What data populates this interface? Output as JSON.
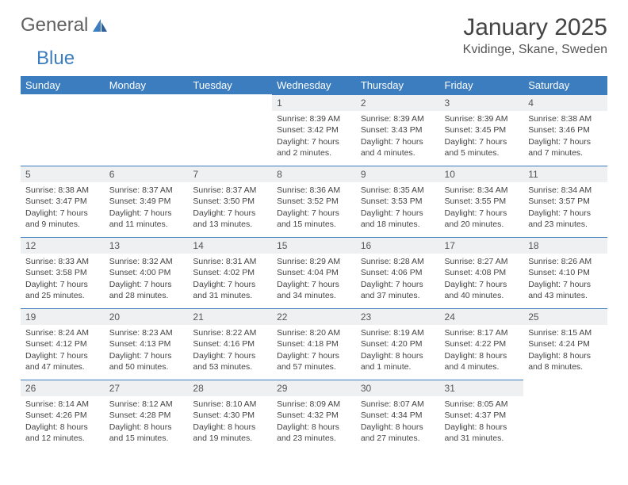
{
  "brand": {
    "part1": "General",
    "part2": "Blue"
  },
  "title": "January 2025",
  "location": "Kvidinge, Skane, Sweden",
  "colors": {
    "header_bg": "#3b7dbf",
    "header_text": "#ffffff",
    "daynum_bg": "#eef0f2",
    "daynum_border": "#3b7dbf",
    "body_text": "#444444",
    "page_bg": "#ffffff"
  },
  "day_names": [
    "Sunday",
    "Monday",
    "Tuesday",
    "Wednesday",
    "Thursday",
    "Friday",
    "Saturday"
  ],
  "weeks": [
    [
      null,
      null,
      null,
      {
        "n": "1",
        "sunrise": "8:39 AM",
        "sunset": "3:42 PM",
        "daylight": "7 hours and 2 minutes."
      },
      {
        "n": "2",
        "sunrise": "8:39 AM",
        "sunset": "3:43 PM",
        "daylight": "7 hours and 4 minutes."
      },
      {
        "n": "3",
        "sunrise": "8:39 AM",
        "sunset": "3:45 PM",
        "daylight": "7 hours and 5 minutes."
      },
      {
        "n": "4",
        "sunrise": "8:38 AM",
        "sunset": "3:46 PM",
        "daylight": "7 hours and 7 minutes."
      }
    ],
    [
      {
        "n": "5",
        "sunrise": "8:38 AM",
        "sunset": "3:47 PM",
        "daylight": "7 hours and 9 minutes."
      },
      {
        "n": "6",
        "sunrise": "8:37 AM",
        "sunset": "3:49 PM",
        "daylight": "7 hours and 11 minutes."
      },
      {
        "n": "7",
        "sunrise": "8:37 AM",
        "sunset": "3:50 PM",
        "daylight": "7 hours and 13 minutes."
      },
      {
        "n": "8",
        "sunrise": "8:36 AM",
        "sunset": "3:52 PM",
        "daylight": "7 hours and 15 minutes."
      },
      {
        "n": "9",
        "sunrise": "8:35 AM",
        "sunset": "3:53 PM",
        "daylight": "7 hours and 18 minutes."
      },
      {
        "n": "10",
        "sunrise": "8:34 AM",
        "sunset": "3:55 PM",
        "daylight": "7 hours and 20 minutes."
      },
      {
        "n": "11",
        "sunrise": "8:34 AM",
        "sunset": "3:57 PM",
        "daylight": "7 hours and 23 minutes."
      }
    ],
    [
      {
        "n": "12",
        "sunrise": "8:33 AM",
        "sunset": "3:58 PM",
        "daylight": "7 hours and 25 minutes."
      },
      {
        "n": "13",
        "sunrise": "8:32 AM",
        "sunset": "4:00 PM",
        "daylight": "7 hours and 28 minutes."
      },
      {
        "n": "14",
        "sunrise": "8:31 AM",
        "sunset": "4:02 PM",
        "daylight": "7 hours and 31 minutes."
      },
      {
        "n": "15",
        "sunrise": "8:29 AM",
        "sunset": "4:04 PM",
        "daylight": "7 hours and 34 minutes."
      },
      {
        "n": "16",
        "sunrise": "8:28 AM",
        "sunset": "4:06 PM",
        "daylight": "7 hours and 37 minutes."
      },
      {
        "n": "17",
        "sunrise": "8:27 AM",
        "sunset": "4:08 PM",
        "daylight": "7 hours and 40 minutes."
      },
      {
        "n": "18",
        "sunrise": "8:26 AM",
        "sunset": "4:10 PM",
        "daylight": "7 hours and 43 minutes."
      }
    ],
    [
      {
        "n": "19",
        "sunrise": "8:24 AM",
        "sunset": "4:12 PM",
        "daylight": "7 hours and 47 minutes."
      },
      {
        "n": "20",
        "sunrise": "8:23 AM",
        "sunset": "4:13 PM",
        "daylight": "7 hours and 50 minutes."
      },
      {
        "n": "21",
        "sunrise": "8:22 AM",
        "sunset": "4:16 PM",
        "daylight": "7 hours and 53 minutes."
      },
      {
        "n": "22",
        "sunrise": "8:20 AM",
        "sunset": "4:18 PM",
        "daylight": "7 hours and 57 minutes."
      },
      {
        "n": "23",
        "sunrise": "8:19 AM",
        "sunset": "4:20 PM",
        "daylight": "8 hours and 1 minute."
      },
      {
        "n": "24",
        "sunrise": "8:17 AM",
        "sunset": "4:22 PM",
        "daylight": "8 hours and 4 minutes."
      },
      {
        "n": "25",
        "sunrise": "8:15 AM",
        "sunset": "4:24 PM",
        "daylight": "8 hours and 8 minutes."
      }
    ],
    [
      {
        "n": "26",
        "sunrise": "8:14 AM",
        "sunset": "4:26 PM",
        "daylight": "8 hours and 12 minutes."
      },
      {
        "n": "27",
        "sunrise": "8:12 AM",
        "sunset": "4:28 PM",
        "daylight": "8 hours and 15 minutes."
      },
      {
        "n": "28",
        "sunrise": "8:10 AM",
        "sunset": "4:30 PM",
        "daylight": "8 hours and 19 minutes."
      },
      {
        "n": "29",
        "sunrise": "8:09 AM",
        "sunset": "4:32 PM",
        "daylight": "8 hours and 23 minutes."
      },
      {
        "n": "30",
        "sunrise": "8:07 AM",
        "sunset": "4:34 PM",
        "daylight": "8 hours and 27 minutes."
      },
      {
        "n": "31",
        "sunrise": "8:05 AM",
        "sunset": "4:37 PM",
        "daylight": "8 hours and 31 minutes."
      },
      null
    ]
  ],
  "labels": {
    "sunrise": "Sunrise: ",
    "sunset": "Sunset: ",
    "daylight": "Daylight: "
  }
}
